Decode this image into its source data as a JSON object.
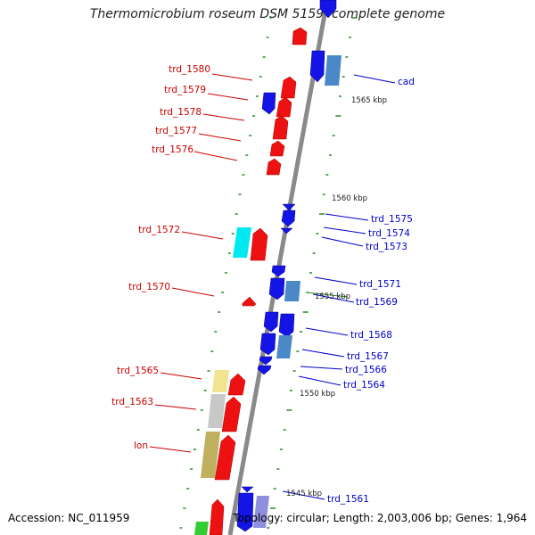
{
  "title": "Thermomicrobium roseum DSM 5159, complete genome",
  "footer": {
    "accession": "Accession: NC_011959",
    "summary": "Topology: circular; Length: 2,003,006 bp; Genes: 1,964"
  },
  "colors": {
    "backbone": "#8a8a8a",
    "forward": "#ee1111",
    "reverse": "#1414e6",
    "tick": "#2a8a2a",
    "cyan": "#00e8f0",
    "steel": "#4a88c8",
    "pale_yellow": "#f0e490",
    "silver": "#c8c8c8",
    "khaki": "#bfb060",
    "green": "#33cc33",
    "lavender": "#8f8fe0"
  },
  "left_labels": [
    "trd_1580",
    "trd_1579",
    "trd_1578",
    "trd_1577",
    "trd_1576",
    "trd_1572",
    "trd_1570",
    "trd_1565",
    "trd_1563",
    "lon"
  ],
  "right_labels": [
    "cad",
    "trd_1575",
    "trd_1574",
    "trd_1573",
    "trd_1571",
    "trd_1569",
    "trd_1568",
    "trd_1567",
    "trd_1566",
    "trd_1564",
    "trd_1561"
  ],
  "scale_labels": [
    "1565 kbp",
    "1560 kbp",
    "1555 kbp",
    "1550 kbp",
    "1545 kbp"
  ]
}
